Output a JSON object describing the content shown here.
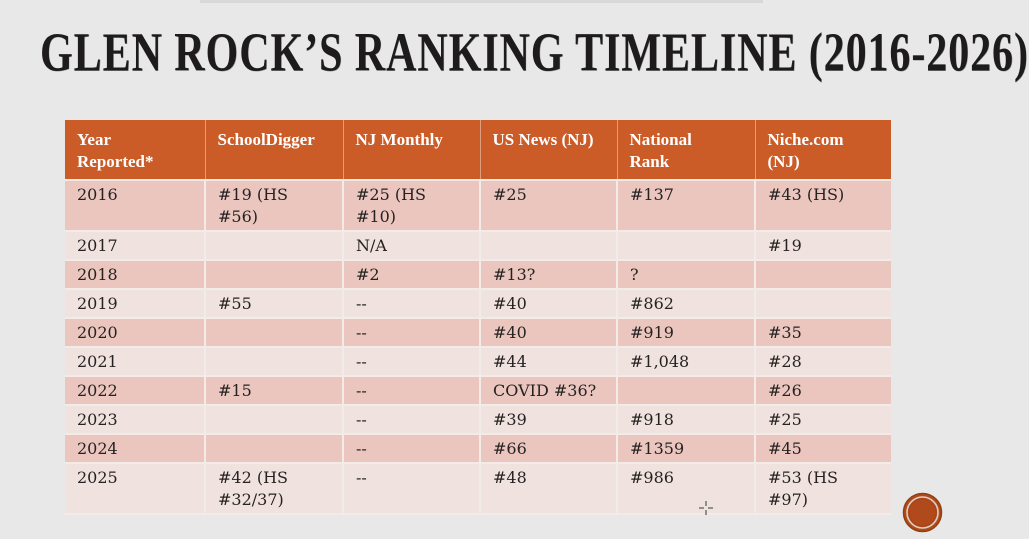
{
  "slide": {
    "title": "GLEN ROCK’S RANKING TIMELINE (2016-2026)"
  },
  "table": {
    "columns": [
      "Year Reported*",
      "SchoolDigger",
      "NJ Monthly",
      "US News (NJ)",
      "National Rank",
      "Niche.com (NJ)"
    ],
    "rows": [
      [
        "2016",
        "#19 (HS #56)",
        "#25 (HS #10)",
        "#25",
        "#137",
        "#43 (HS)"
      ],
      [
        "2017",
        "",
        "N/A",
        "",
        "",
        "#19"
      ],
      [
        "2018",
        "",
        "#2",
        "#13?",
        "?",
        ""
      ],
      [
        "2019",
        "#55",
        "--",
        "#40",
        "#862",
        ""
      ],
      [
        "2020",
        "",
        "--",
        "#40",
        "#919",
        "#35"
      ],
      [
        "2021",
        "",
        "--",
        "#44",
        "#1,048",
        "#28"
      ],
      [
        "2022",
        "#15",
        "--",
        "COVID #36?",
        "",
        "#26"
      ],
      [
        "2023",
        "",
        "--",
        "#39",
        "#918",
        "#25"
      ],
      [
        "2024",
        "",
        "--",
        "#66",
        "#1359",
        "#45"
      ],
      [
        "2025",
        "#42 (HS #32/37)",
        "--",
        "#48",
        "#986",
        "#53 (HS #97)"
      ]
    ]
  },
  "colors": {
    "background": "#e9e8e8",
    "title": "#1d1b1b",
    "header_bg": "#cb5c27",
    "header_text": "#ffffff",
    "row_dark": "#eac6be",
    "row_light": "#f0e3df",
    "cell_text": "#262222",
    "divider": "#f3ebe8",
    "logo": "#b04a1d",
    "logo_ring": "#e8e4e0",
    "cursor": "#8f8f8f"
  },
  "icons": {
    "cursor": "crosshair-cursor",
    "logo": "orange-circle-stamp-logo"
  }
}
